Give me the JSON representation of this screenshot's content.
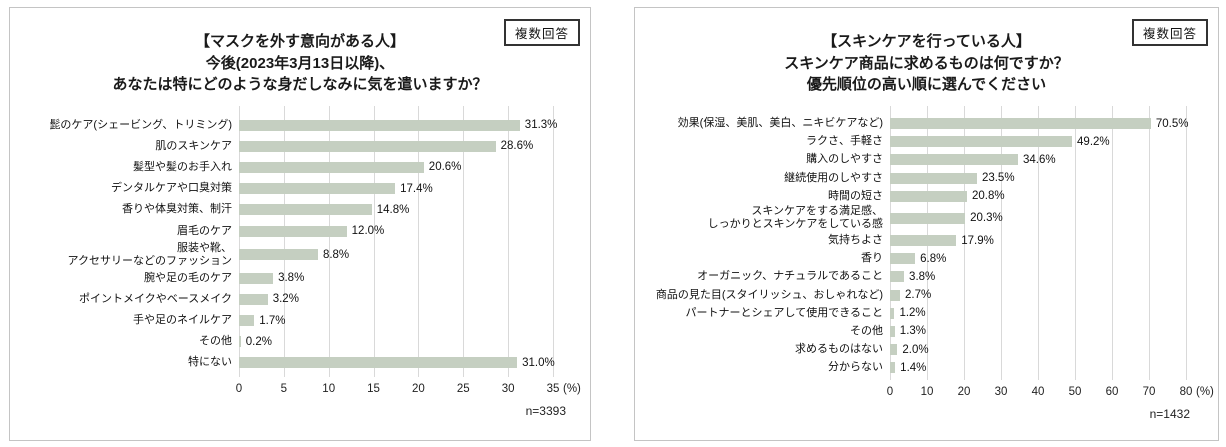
{
  "chart_data": [
    {
      "type": "bar",
      "orientation": "horizontal",
      "title_lines": [
        "【マスクを外す意向がある人】",
        "今後(2023年3月13日以降)、",
        "あなたは特にどのような身だしなみに気を遣いますか？"
      ],
      "badge": "複数回答",
      "categories": [
        "髭のケア(シェービング、トリミング)",
        "肌のスキンケア",
        "髪型や髪のお手入れ",
        "デンタルケアや口臭対策",
        "香りや体臭対策、制汗",
        "眉毛のケア",
        "服装や靴、\nアクセサリーなどのファッション",
        "腕や足の毛のケア",
        "ポイントメイクやベースメイク",
        "手や足のネイルケア",
        "その他",
        "特にない"
      ],
      "values": [
        31.3,
        28.6,
        20.6,
        17.4,
        14.8,
        12.0,
        8.8,
        3.8,
        3.2,
        1.7,
        0.2,
        31.0
      ],
      "value_labels": [
        "31.3%",
        "28.6%",
        "20.6%",
        "17.4%",
        "14.8%",
        "12.0%",
        "8.8%",
        "3.8%",
        "3.2%",
        "1.7%",
        "0.2%",
        "31.0%"
      ],
      "xlim": [
        0,
        35
      ],
      "ticks": [
        0,
        5,
        10,
        15,
        20,
        25,
        30,
        35
      ],
      "axis_unit": "(%)",
      "sample_label": "n=3393",
      "bar_color": "#c5cfc1",
      "grid": true,
      "legend_position": "none"
    },
    {
      "type": "bar",
      "orientation": "horizontal",
      "title_lines": [
        "【スキンケアを行っている人】",
        "スキンケア商品に求めるものは何ですか？",
        "優先順位の高い順に選んでください"
      ],
      "badge": "複数回答",
      "categories": [
        "効果(保湿、美肌、美白、ニキビケアなど)",
        "ラクさ、手軽さ",
        "購入のしやすさ",
        "継続使用のしやすさ",
        "時間の短さ",
        "スキンケアをする満足感、\nしっかりとスキンケアをしている感",
        "気持ちよさ",
        "香り",
        "オーガニック、ナチュラルであること",
        "商品の見た目(スタイリッシュ、おしゃれなど)",
        "パートナーとシェアして使用できること",
        "その他",
        "求めるものはない",
        "分からない"
      ],
      "values": [
        70.5,
        49.2,
        34.6,
        23.5,
        20.8,
        20.3,
        17.9,
        6.8,
        3.8,
        2.7,
        1.2,
        1.3,
        2.0,
        1.4
      ],
      "value_labels": [
        "70.5%",
        "49.2%",
        "34.6%",
        "23.5%",
        "20.8%",
        "20.3%",
        "17.9%",
        "6.8%",
        "3.8%",
        "2.7%",
        "1.2%",
        "1.3%",
        "2.0%",
        "1.4%"
      ],
      "xlim": [
        0,
        80
      ],
      "ticks": [
        0,
        10,
        20,
        30,
        40,
        50,
        60,
        70,
        80
      ],
      "axis_unit": "(%)",
      "sample_label": "n=1432",
      "bar_color": "#c5cfc1",
      "grid": true,
      "legend_position": "none"
    }
  ]
}
